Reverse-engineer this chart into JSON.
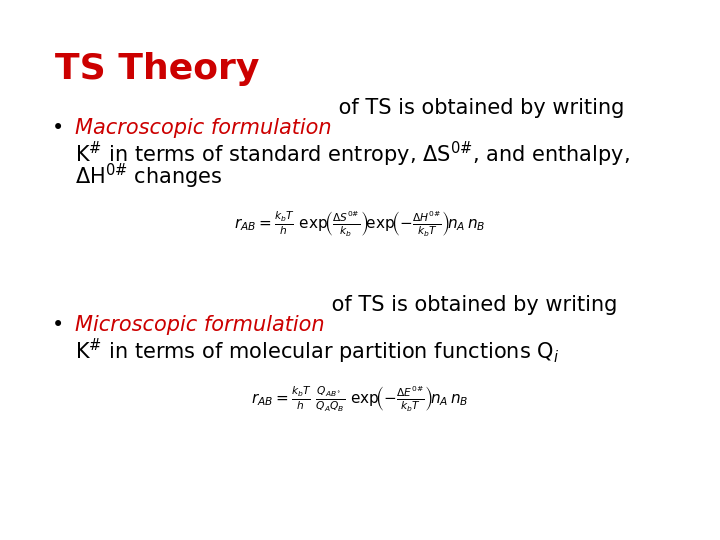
{
  "background_color": "#ffffff",
  "title": "TS Theory",
  "title_color": "#cc0000",
  "title_fontsize": 26,
  "bullet1_italic": "Macroscopic formulation",
  "bullet1_rest_line1": " of TS is obtained by writing",
  "bullet1_line2": "Kⁿ in terms of standard entropy, ΔS⁰ⁿ, and enthalpy,",
  "bullet1_line3": "ΔH⁰ⁿ changes",
  "bullet2_italic": "Microscopic formulation",
  "bullet2_rest_line1": " of TS is obtained by writing",
  "bullet2_line2": "Kⁿ in terms of molecular partition functions Qᵢ",
  "text_fontsize": 15,
  "eq_fontsize": 11,
  "italic_color": "#cc0000",
  "text_color": "#000000"
}
